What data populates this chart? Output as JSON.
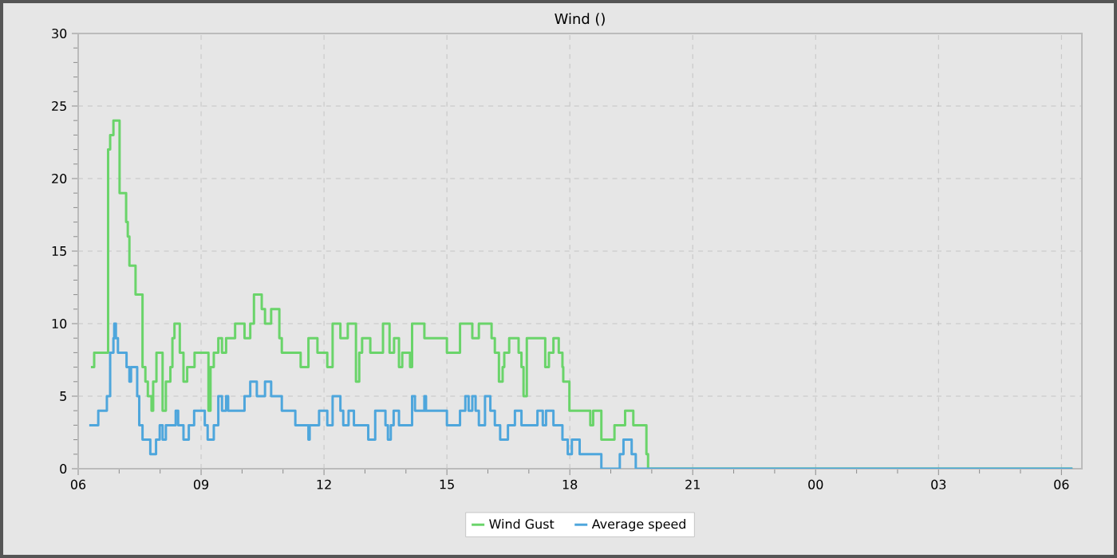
{
  "chart_data": {
    "type": "step",
    "title": "Wind ()",
    "xlim": [
      6,
      30.5
    ],
    "ylim": [
      0,
      30
    ],
    "xticks": [
      {
        "value": 6,
        "label": "06"
      },
      {
        "value": 9,
        "label": "09"
      },
      {
        "value": 12,
        "label": "12"
      },
      {
        "value": 15,
        "label": "15"
      },
      {
        "value": 18,
        "label": "18"
      },
      {
        "value": 21,
        "label": "21"
      },
      {
        "value": 24,
        "label": "00"
      },
      {
        "value": 27,
        "label": "03"
      },
      {
        "value": 30,
        "label": "06"
      }
    ],
    "yticks": [
      0,
      5,
      10,
      15,
      20,
      25,
      30
    ],
    "grid": true,
    "legend": "bottom",
    "line_style": "solid",
    "series": [
      {
        "name": "Wind Gust",
        "color": "#6ad46a",
        "x": [
          6.31,
          6.39,
          6.73,
          6.78,
          6.86,
          7.01,
          7.17,
          7.21,
          7.25,
          7.4,
          7.57,
          7.64,
          7.7,
          7.79,
          7.83,
          7.91,
          8.06,
          8.14,
          8.25,
          8.3,
          8.35,
          8.48,
          8.57,
          8.66,
          8.84,
          9.18,
          9.23,
          9.31,
          9.42,
          9.51,
          9.61,
          9.83,
          10.06,
          10.2,
          10.29,
          10.48,
          10.56,
          10.71,
          10.91,
          10.97,
          11.43,
          11.62,
          11.84,
          12.08,
          12.21,
          12.4,
          12.58,
          12.78,
          12.86,
          12.93,
          13.13,
          13.44,
          13.6,
          13.71,
          13.83,
          13.91,
          14.1,
          14.15,
          14.45,
          15.0,
          15.32,
          15.62,
          15.78,
          16.09,
          16.17,
          16.27,
          16.36,
          16.4,
          16.52,
          16.75,
          16.82,
          16.87,
          16.95,
          17.4,
          17.49,
          17.6,
          17.73,
          17.82,
          17.84,
          17.99,
          18.5,
          18.57,
          18.77,
          19.09,
          19.35,
          19.55,
          19.87,
          19.91,
          30.27
        ],
        "values": [
          7,
          8,
          22,
          23,
          24,
          19,
          17,
          16,
          14,
          12,
          7,
          6,
          5,
          4,
          6,
          8,
          4,
          6,
          7,
          9,
          10,
          8,
          6,
          7,
          8,
          4,
          7,
          8,
          9,
          8,
          9,
          10,
          9,
          10,
          12,
          11,
          10,
          11,
          9,
          8,
          7,
          9,
          8,
          7,
          10,
          9,
          10,
          6,
          8,
          9,
          8,
          10,
          8,
          9,
          7,
          8,
          7,
          10,
          9,
          8,
          10,
          9,
          10,
          9,
          8,
          6,
          7,
          8,
          9,
          8,
          7,
          5,
          9,
          7,
          8,
          9,
          8,
          7,
          6,
          4,
          3,
          4,
          2,
          3,
          4,
          3,
          1,
          0,
          0
        ]
      },
      {
        "name": "Average speed",
        "color": "#4ea6dc",
        "x": [
          6.27,
          6.49,
          6.7,
          6.78,
          6.86,
          6.88,
          6.92,
          6.97,
          7.18,
          7.25,
          7.29,
          7.44,
          7.49,
          7.57,
          7.76,
          7.9,
          7.99,
          8.06,
          8.14,
          8.38,
          8.44,
          8.57,
          8.7,
          8.83,
          9.09,
          9.16,
          9.31,
          9.42,
          9.51,
          9.61,
          9.66,
          10.06,
          10.2,
          10.36,
          10.56,
          10.71,
          10.97,
          11.3,
          11.62,
          11.65,
          11.88,
          12.08,
          12.21,
          12.4,
          12.47,
          12.6,
          12.73,
          13.08,
          13.25,
          13.5,
          13.56,
          13.63,
          13.7,
          13.83,
          14.15,
          14.22,
          14.45,
          14.49,
          15.0,
          15.32,
          15.45,
          15.53,
          15.62,
          15.7,
          15.78,
          15.93,
          16.06,
          16.17,
          16.3,
          16.49,
          16.66,
          16.82,
          17.21,
          17.34,
          17.42,
          17.6,
          17.82,
          17.95,
          18.05,
          18.24,
          18.77,
          19.22,
          19.31,
          19.51,
          19.61,
          30.27
        ],
        "values": [
          3,
          4,
          5,
          8,
          9,
          10,
          9,
          8,
          7,
          6,
          7,
          5,
          3,
          2,
          1,
          2,
          3,
          2,
          3,
          4,
          3,
          2,
          3,
          4,
          3,
          2,
          3,
          5,
          4,
          5,
          4,
          5,
          6,
          5,
          6,
          5,
          4,
          3,
          2,
          3,
          4,
          3,
          5,
          4,
          3,
          4,
          3,
          2,
          4,
          3,
          2,
          3,
          4,
          3,
          5,
          4,
          5,
          4,
          3,
          4,
          5,
          4,
          5,
          4,
          3,
          5,
          4,
          3,
          2,
          3,
          4,
          3,
          4,
          3,
          4,
          3,
          2,
          1,
          2,
          1,
          0,
          1,
          2,
          1,
          0,
          0
        ]
      }
    ]
  }
}
